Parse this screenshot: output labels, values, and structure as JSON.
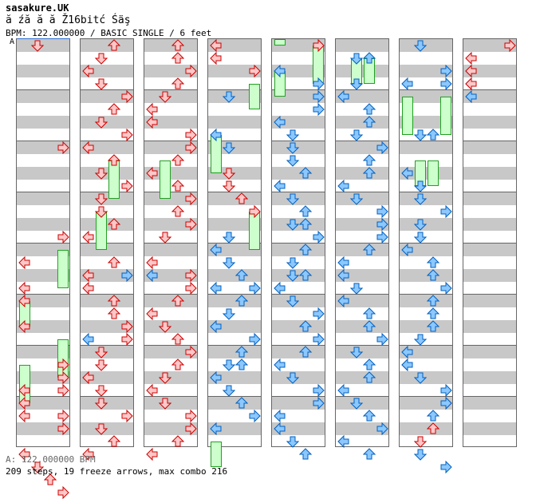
{
  "header": {
    "title": "sasakure.UK",
    "subtitle": "ă źă  ă  ă Ž16bitć Śäş",
    "meta": "BPM: 122.000000 / BASIC SINGLE / 6 feet",
    "marker": "A"
  },
  "footer": {
    "bpm_line": "A: 122.000000 BPM",
    "stats": "209 steps, 19 freeze arrows, max combo 216"
  },
  "colors": {
    "red_fill": "#ffc8c8",
    "red_stroke": "#cc0000",
    "blue_fill": "#8cc8ff",
    "blue_stroke": "#0060c0",
    "freeze_fill": "#ccffcc",
    "freeze_stroke": "#22a022",
    "stripe": "#c8c8c8",
    "border": "#666666"
  },
  "chart": {
    "columns": 8,
    "measures_per_column": 8,
    "notes": [
      [
        0,
        1,
        "R",
        0
      ],
      [
        0,
        3,
        "R",
        8
      ],
      [
        0,
        3,
        "R",
        15
      ],
      [
        0,
        0,
        "R",
        17
      ],
      [
        0,
        0,
        "R",
        19
      ],
      [
        0,
        0,
        "R",
        20
      ],
      [
        0,
        0,
        "R",
        22
      ],
      [
        0,
        3,
        "R",
        25
      ],
      [
        0,
        3,
        "R",
        26
      ],
      [
        0,
        3,
        "R",
        27
      ],
      [
        0,
        0,
        "R",
        27
      ],
      [
        0,
        0,
        "R",
        28
      ],
      [
        0,
        0,
        "R",
        29
      ],
      [
        0,
        3,
        "R",
        29
      ],
      [
        0,
        3,
        "R",
        30
      ],
      [
        0,
        0,
        "R",
        32
      ],
      [
        0,
        1,
        "R",
        33
      ],
      [
        0,
        2,
        "R",
        34
      ],
      [
        0,
        3,
        "R",
        35
      ],
      [
        1,
        2,
        "R",
        0
      ],
      [
        1,
        1,
        "R",
        1
      ],
      [
        1,
        0,
        "R",
        2
      ],
      [
        1,
        1,
        "R",
        3
      ],
      [
        1,
        3,
        "R",
        4
      ],
      [
        1,
        2,
        "R",
        5
      ],
      [
        1,
        1,
        "R",
        6
      ],
      [
        1,
        3,
        "R",
        7
      ],
      [
        1,
        0,
        "R",
        8
      ],
      [
        1,
        2,
        "R",
        9
      ],
      [
        1,
        1,
        "R",
        10
      ],
      [
        1,
        3,
        "R",
        11
      ],
      [
        1,
        1,
        "R",
        12
      ],
      [
        1,
        1,
        "R",
        13
      ],
      [
        1,
        2,
        "R",
        14
      ],
      [
        1,
        0,
        "R",
        15
      ],
      [
        1,
        2,
        "R",
        17
      ],
      [
        1,
        0,
        "R",
        18
      ],
      [
        1,
        3,
        "B",
        18
      ],
      [
        1,
        0,
        "R",
        19
      ],
      [
        1,
        2,
        "R",
        20
      ],
      [
        1,
        2,
        "R",
        21
      ],
      [
        1,
        3,
        "R",
        22
      ],
      [
        1,
        0,
        "B",
        23
      ],
      [
        1,
        3,
        "R",
        23
      ],
      [
        1,
        1,
        "R",
        24
      ],
      [
        1,
        1,
        "R",
        25
      ],
      [
        1,
        0,
        "R",
        26
      ],
      [
        1,
        1,
        "R",
        27
      ],
      [
        1,
        1,
        "R",
        28
      ],
      [
        1,
        3,
        "R",
        29
      ],
      [
        1,
        1,
        "R",
        30
      ],
      [
        1,
        2,
        "R",
        31
      ],
      [
        1,
        0,
        "R",
        32
      ],
      [
        2,
        2,
        "R",
        0
      ],
      [
        2,
        2,
        "R",
        1
      ],
      [
        2,
        3,
        "R",
        2
      ],
      [
        2,
        2,
        "R",
        3
      ],
      [
        2,
        1,
        "R",
        4
      ],
      [
        2,
        0,
        "R",
        5
      ],
      [
        2,
        0,
        "R",
        6
      ],
      [
        2,
        3,
        "R",
        7
      ],
      [
        2,
        3,
        "R",
        8
      ],
      [
        2,
        2,
        "R",
        9
      ],
      [
        2,
        0,
        "R",
        10
      ],
      [
        2,
        2,
        "R",
        11
      ],
      [
        2,
        3,
        "R",
        12
      ],
      [
        2,
        2,
        "R",
        13
      ],
      [
        2,
        3,
        "R",
        14
      ],
      [
        2,
        1,
        "R",
        15
      ],
      [
        2,
        0,
        "R",
        17
      ],
      [
        2,
        3,
        "R",
        18
      ],
      [
        2,
        0,
        "B",
        18
      ],
      [
        2,
        3,
        "R",
        19
      ],
      [
        2,
        2,
        "R",
        20
      ],
      [
        2,
        0,
        "R",
        21
      ],
      [
        2,
        1,
        "R",
        22
      ],
      [
        2,
        2,
        "R",
        23
      ],
      [
        2,
        3,
        "R",
        24
      ],
      [
        2,
        2,
        "R",
        25
      ],
      [
        2,
        1,
        "R",
        26
      ],
      [
        2,
        0,
        "R",
        27
      ],
      [
        2,
        1,
        "R",
        28
      ],
      [
        2,
        3,
        "R",
        29
      ],
      [
        2,
        3,
        "R",
        30
      ],
      [
        2,
        2,
        "R",
        31
      ],
      [
        2,
        0,
        "R",
        32
      ],
      [
        3,
        0,
        "R",
        0
      ],
      [
        3,
        0,
        "R",
        1
      ],
      [
        3,
        3,
        "R",
        2
      ],
      [
        3,
        1,
        "B",
        4
      ],
      [
        3,
        0,
        "B",
        7
      ],
      [
        3,
        1,
        "B",
        8
      ],
      [
        3,
        1,
        "R",
        10
      ],
      [
        3,
        1,
        "R",
        11
      ],
      [
        3,
        2,
        "R",
        12
      ],
      [
        3,
        3,
        "R",
        13
      ],
      [
        3,
        1,
        "B",
        15
      ],
      [
        3,
        0,
        "B",
        16
      ],
      [
        3,
        1,
        "B",
        17
      ],
      [
        3,
        2,
        "B",
        18
      ],
      [
        3,
        0,
        "B",
        19
      ],
      [
        3,
        3,
        "B",
        19
      ],
      [
        3,
        2,
        "B",
        20
      ],
      [
        3,
        1,
        "B",
        21
      ],
      [
        3,
        0,
        "B",
        22
      ],
      [
        3,
        3,
        "B",
        23
      ],
      [
        3,
        2,
        "B",
        24
      ],
      [
        3,
        1,
        "B",
        25
      ],
      [
        3,
        2,
        "B",
        25
      ],
      [
        3,
        0,
        "B",
        26
      ],
      [
        3,
        1,
        "B",
        27
      ],
      [
        3,
        2,
        "B",
        28
      ],
      [
        3,
        3,
        "B",
        29
      ],
      [
        3,
        0,
        "B",
        30
      ],
      [
        4,
        3,
        "R",
        0
      ],
      [
        4,
        0,
        "B",
        2
      ],
      [
        4,
        3,
        "B",
        3
      ],
      [
        4,
        3,
        "B",
        4
      ],
      [
        4,
        3,
        "B",
        5
      ],
      [
        4,
        0,
        "B",
        6
      ],
      [
        4,
        1,
        "B",
        7
      ],
      [
        4,
        1,
        "B",
        8
      ],
      [
        4,
        1,
        "B",
        9
      ],
      [
        4,
        2,
        "B",
        10
      ],
      [
        4,
        0,
        "B",
        11
      ],
      [
        4,
        1,
        "B",
        12
      ],
      [
        4,
        2,
        "B",
        13
      ],
      [
        4,
        1,
        "B",
        14
      ],
      [
        4,
        2,
        "B",
        14
      ],
      [
        4,
        3,
        "B",
        15
      ],
      [
        4,
        2,
        "B",
        16
      ],
      [
        4,
        1,
        "B",
        17
      ],
      [
        4,
        1,
        "B",
        18
      ],
      [
        4,
        2,
        "B",
        18
      ],
      [
        4,
        0,
        "B",
        19
      ],
      [
        4,
        1,
        "B",
        20
      ],
      [
        4,
        3,
        "B",
        21
      ],
      [
        4,
        2,
        "B",
        22
      ],
      [
        4,
        3,
        "B",
        23
      ],
      [
        4,
        2,
        "B",
        24
      ],
      [
        4,
        0,
        "B",
        25
      ],
      [
        4,
        1,
        "B",
        26
      ],
      [
        4,
        3,
        "B",
        27
      ],
      [
        4,
        3,
        "B",
        28
      ],
      [
        4,
        0,
        "B",
        29
      ],
      [
        4,
        0,
        "B",
        30
      ],
      [
        4,
        1,
        "B",
        31
      ],
      [
        4,
        2,
        "B",
        32
      ],
      [
        5,
        1,
        "B",
        1
      ],
      [
        5,
        2,
        "B",
        1
      ],
      [
        5,
        1,
        "B",
        3
      ],
      [
        5,
        0,
        "B",
        4
      ],
      [
        5,
        2,
        "B",
        5
      ],
      [
        5,
        2,
        "B",
        6
      ],
      [
        5,
        1,
        "B",
        7
      ],
      [
        5,
        3,
        "B",
        8
      ],
      [
        5,
        2,
        "B",
        9
      ],
      [
        5,
        2,
        "B",
        10
      ],
      [
        5,
        0,
        "B",
        11
      ],
      [
        5,
        1,
        "B",
        12
      ],
      [
        5,
        3,
        "B",
        13
      ],
      [
        5,
        3,
        "B",
        14
      ],
      [
        5,
        3,
        "B",
        15
      ],
      [
        5,
        2,
        "B",
        16
      ],
      [
        5,
        0,
        "B",
        17
      ],
      [
        5,
        0,
        "B",
        18
      ],
      [
        5,
        1,
        "B",
        19
      ],
      [
        5,
        0,
        "B",
        20
      ],
      [
        5,
        2,
        "B",
        21
      ],
      [
        5,
        2,
        "B",
        22
      ],
      [
        5,
        3,
        "B",
        23
      ],
      [
        5,
        1,
        "B",
        24
      ],
      [
        5,
        2,
        "B",
        25
      ],
      [
        5,
        2,
        "B",
        26
      ],
      [
        5,
        0,
        "B",
        27
      ],
      [
        5,
        1,
        "B",
        28
      ],
      [
        5,
        2,
        "B",
        29
      ],
      [
        5,
        3,
        "B",
        30
      ],
      [
        5,
        0,
        "B",
        31
      ],
      [
        5,
        2,
        "B",
        32
      ],
      [
        6,
        1,
        "B",
        0
      ],
      [
        6,
        3,
        "B",
        2
      ],
      [
        6,
        0,
        "B",
        3
      ],
      [
        6,
        3,
        "B",
        3
      ],
      [
        6,
        1,
        "B",
        7
      ],
      [
        6,
        2,
        "B",
        7
      ],
      [
        6,
        0,
        "B",
        10
      ],
      [
        6,
        1,
        "B",
        11
      ],
      [
        6,
        1,
        "B",
        12
      ],
      [
        6,
        3,
        "B",
        13
      ],
      [
        6,
        1,
        "B",
        14
      ],
      [
        6,
        1,
        "B",
        15
      ],
      [
        6,
        0,
        "B",
        16
      ],
      [
        6,
        2,
        "B",
        17
      ],
      [
        6,
        2,
        "B",
        18
      ],
      [
        6,
        3,
        "B",
        19
      ],
      [
        6,
        2,
        "B",
        20
      ],
      [
        6,
        2,
        "B",
        21
      ],
      [
        6,
        2,
        "B",
        22
      ],
      [
        6,
        1,
        "B",
        23
      ],
      [
        6,
        0,
        "B",
        24
      ],
      [
        6,
        0,
        "R",
        25
      ],
      [
        6,
        0,
        "B",
        25
      ],
      [
        6,
        1,
        "B",
        26
      ],
      [
        6,
        3,
        "B",
        27
      ],
      [
        6,
        3,
        "R",
        28
      ],
      [
        6,
        3,
        "B",
        28
      ],
      [
        6,
        2,
        "B",
        29
      ],
      [
        6,
        2,
        "R",
        30
      ],
      [
        6,
        1,
        "R",
        31
      ],
      [
        6,
        1,
        "B",
        32
      ],
      [
        6,
        3,
        "B",
        33
      ],
      [
        7,
        3,
        "R",
        0
      ],
      [
        7,
        0,
        "R",
        1
      ],
      [
        7,
        0,
        "B",
        2
      ],
      [
        7,
        0,
        "R",
        2
      ],
      [
        7,
        0,
        "B",
        3
      ],
      [
        7,
        0,
        "R",
        3
      ],
      [
        7,
        0,
        "B",
        4
      ]
    ],
    "freezes": [
      [
        0,
        3,
        16,
        19
      ],
      [
        0,
        0,
        20,
        22
      ],
      [
        0,
        3,
        23,
        26
      ],
      [
        0,
        0,
        25,
        28
      ],
      [
        1,
        2,
        9,
        12
      ],
      [
        1,
        1,
        13,
        16
      ],
      [
        2,
        1,
        9,
        12
      ],
      [
        3,
        3,
        3,
        5
      ],
      [
        3,
        0,
        7,
        10
      ],
      [
        3,
        3,
        13,
        16
      ],
      [
        3,
        0,
        31,
        33
      ],
      [
        4,
        0,
        -1,
        0
      ],
      [
        4,
        3,
        0,
        3
      ],
      [
        4,
        0,
        2,
        4
      ],
      [
        5,
        1,
        1,
        3
      ],
      [
        5,
        2,
        1,
        3
      ],
      [
        6,
        0,
        4,
        7
      ],
      [
        6,
        3,
        4,
        7
      ],
      [
        6,
        1,
        9,
        11
      ],
      [
        6,
        2,
        9,
        11
      ]
    ]
  }
}
